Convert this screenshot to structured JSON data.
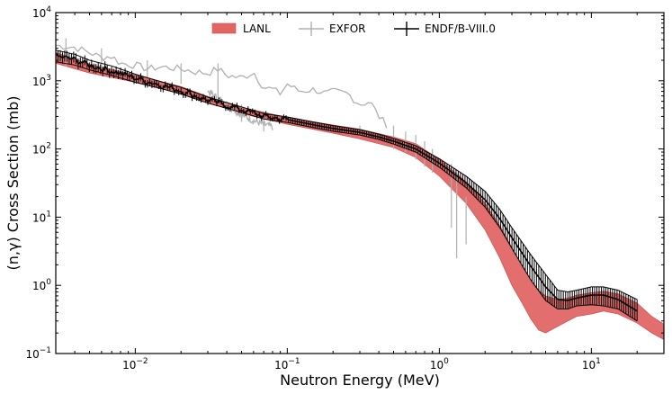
{
  "chart_data": {
    "type": "line",
    "title": "",
    "xlabel": "Neutron Energy (MeV)",
    "ylabel": "(n,γ) Cross Section (mb)",
    "xscale": "log",
    "yscale": "log",
    "xlim": [
      0.003,
      30
    ],
    "ylim": [
      0.1,
      10000
    ],
    "x_ticks": [
      {
        "value": 0.01,
        "base": "10",
        "exp": "−2"
      },
      {
        "value": 0.1,
        "base": "10",
        "exp": "−1"
      },
      {
        "value": 1,
        "base": "10",
        "exp": "0"
      },
      {
        "value": 10,
        "base": "10",
        "exp": "1"
      }
    ],
    "y_ticks": [
      {
        "value": 0.1,
        "base": "10",
        "exp": "−1"
      },
      {
        "value": 1,
        "base": "10",
        "exp": "0"
      },
      {
        "value": 10,
        "base": "10",
        "exp": "1"
      },
      {
        "value": 100,
        "base": "10",
        "exp": "2"
      },
      {
        "value": 1000,
        "base": "10",
        "exp": "3"
      },
      {
        "value": 10000,
        "base": "10",
        "exp": "4"
      }
    ],
    "legend": {
      "placement": "top",
      "entries": [
        {
          "label": "LANL",
          "color": "#e06666",
          "marker": "band"
        },
        {
          "label": "EXFOR",
          "color": "#b0b0b0",
          "marker": "errorbar"
        },
        {
          "label": "ENDF/B-VIII.0",
          "color": "#000000",
          "marker": "errorbar"
        }
      ]
    },
    "series": [
      {
        "name": "LANL",
        "kind": "band",
        "color": "#e06666",
        "x": [
          0.003,
          0.005,
          0.01,
          0.02,
          0.03,
          0.05,
          0.1,
          0.2,
          0.3,
          0.5,
          0.7,
          1.0,
          1.5,
          2.0,
          2.5,
          3.0,
          3.5,
          4.0,
          4.5,
          5.0,
          6.0,
          7.0,
          8.0,
          10,
          12,
          15,
          20,
          25,
          30
        ],
        "lower": [
          1800,
          1300,
          950,
          650,
          480,
          330,
          230,
          170,
          140,
          105,
          75,
          40,
          16,
          6.5,
          2.5,
          1.0,
          0.55,
          0.32,
          0.22,
          0.2,
          0.25,
          0.3,
          0.35,
          0.38,
          0.42,
          0.38,
          0.28,
          0.2,
          0.16
        ],
        "upper": [
          2600,
          1750,
          1220,
          820,
          590,
          410,
          290,
          225,
          195,
          150,
          120,
          70,
          33,
          16,
          7.5,
          3.6,
          1.9,
          1.2,
          0.85,
          0.7,
          0.62,
          0.65,
          0.72,
          0.78,
          0.82,
          0.75,
          0.55,
          0.35,
          0.27
        ]
      },
      {
        "name": "ENDF/B-VIII.0",
        "kind": "line",
        "color": "#000000",
        "x": [
          0.003,
          0.004,
          0.005,
          0.007,
          0.01,
          0.015,
          0.02,
          0.03,
          0.05,
          0.07,
          0.1,
          0.15,
          0.2,
          0.3,
          0.4,
          0.5,
          0.7,
          1.0,
          1.5,
          2.0,
          2.5,
          3.0,
          4.0,
          5.0,
          6.0,
          7.0,
          8.0,
          10,
          12,
          15,
          20
        ],
        "y": [
          2300,
          2050,
          1700,
          1400,
          1100,
          860,
          720,
          520,
          380,
          300,
          270,
          225,
          200,
          175,
          150,
          130,
          100,
          62,
          32,
          18,
          9.5,
          5.0,
          1.9,
          0.95,
          0.62,
          0.6,
          0.65,
          0.72,
          0.72,
          0.62,
          0.42
        ],
        "err_lower": [
          1900,
          1700,
          1450,
          1200,
          950,
          760,
          640,
          470,
          345,
          275,
          245,
          205,
          182,
          160,
          138,
          118,
          90,
          54,
          27,
          14,
          7.0,
          3.5,
          1.2,
          0.6,
          0.45,
          0.45,
          0.5,
          0.52,
          0.5,
          0.45,
          0.3
        ],
        "err_upper": [
          2800,
          2450,
          2000,
          1650,
          1250,
          960,
          800,
          575,
          415,
          330,
          295,
          248,
          220,
          192,
          165,
          143,
          112,
          72,
          40,
          24,
          13,
          7.0,
          2.8,
          1.45,
          0.85,
          0.8,
          0.85,
          0.95,
          0.95,
          0.85,
          0.62
        ]
      },
      {
        "name": "EXFOR",
        "kind": "line",
        "color": "#b0b0b0",
        "x": [
          0.003,
          0.004,
          0.005,
          0.006,
          0.007,
          0.008,
          0.01,
          0.012,
          0.015,
          0.02,
          0.025,
          0.03,
          0.035,
          0.04,
          0.05,
          0.06,
          0.07,
          0.08,
          0.09,
          0.1,
          0.12,
          0.15,
          0.18,
          0.2,
          0.25,
          0.3,
          0.35,
          0.4,
          0.45
        ],
        "y": [
          3300,
          3100,
          2600,
          2200,
          2300,
          1800,
          1700,
          1500,
          1600,
          1500,
          1350,
          1300,
          1500,
          1200,
          1100,
          1350,
          800,
          750,
          650,
          900,
          700,
          750,
          650,
          700,
          650,
          450,
          500,
          300,
          230
        ]
      },
      {
        "name": "EXFOR",
        "kind": "line",
        "color": "#b0b0b0",
        "x": [
          0.03,
          0.04,
          0.05,
          0.06,
          0.07,
          0.08
        ],
        "y": [
          700,
          450,
          320,
          260,
          230,
          210
        ]
      }
    ],
    "exfor_errorbars": [
      {
        "x": 0.0035,
        "lo": 1600,
        "hi": 4200
      },
      {
        "x": 0.006,
        "lo": 1500,
        "hi": 3000
      },
      {
        "x": 0.012,
        "lo": 1100,
        "hi": 2000
      },
      {
        "x": 0.02,
        "lo": 900,
        "hi": 1800
      },
      {
        "x": 0.035,
        "lo": 500,
        "hi": 1800
      },
      {
        "x": 0.05,
        "lo": 250,
        "hi": 450
      },
      {
        "x": 0.07,
        "lo": 180,
        "hi": 350
      },
      {
        "x": 0.3,
        "lo": 150,
        "hi": 220
      },
      {
        "x": 0.5,
        "lo": 100,
        "hi": 220
      },
      {
        "x": 0.6,
        "lo": 90,
        "hi": 180
      },
      {
        "x": 0.7,
        "lo": 70,
        "hi": 160
      },
      {
        "x": 0.8,
        "lo": 55,
        "hi": 130
      },
      {
        "x": 0.9,
        "lo": 45,
        "hi": 100
      },
      {
        "x": 1.2,
        "lo": 7,
        "hi": 60
      },
      {
        "x": 1.3,
        "lo": 2.5,
        "hi": 45
      },
      {
        "x": 1.5,
        "lo": 4,
        "hi": 20
      }
    ]
  }
}
